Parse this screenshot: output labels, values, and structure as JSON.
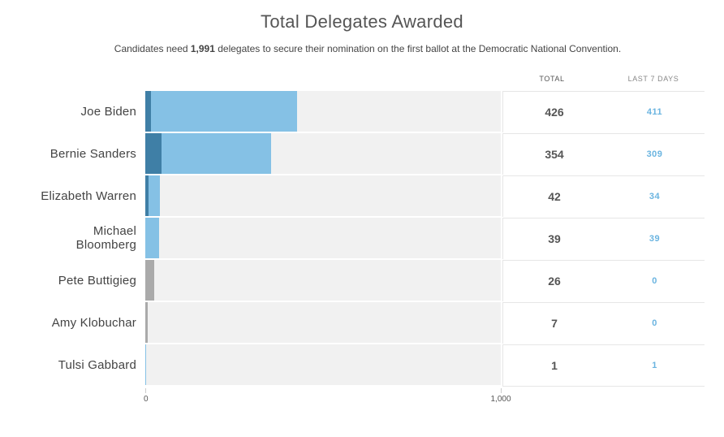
{
  "title": "Total Delegates Awarded",
  "subtitle": {
    "pre": "Candidates need ",
    "bold": "1,991",
    "post": " delegates to secure their nomination on the first ballot at the Democratic National Convention."
  },
  "columns": {
    "total": "TOTAL",
    "last7": "LAST 7 DAYS"
  },
  "colors": {
    "new": "#85c1e5",
    "prior": "#3f7fa6",
    "dropped": "#aaaaaa",
    "track": "#f1f1f1",
    "week_text": "#6ab4e0"
  },
  "chart_data": {
    "type": "bar",
    "orientation": "horizontal",
    "categories": [
      "Joe Biden",
      "Bernie Sanders",
      "Elizabeth Warren",
      "Michael Bloomberg",
      "Pete Buttigieg",
      "Amy Klobuchar",
      "Tulsi Gabbard"
    ],
    "category_labels": [
      "Joe Biden",
      "Bernie Sanders",
      "Elizabeth Warren",
      "Michael\nBloomberg",
      "Pete Buttigieg",
      "Amy Klobuchar",
      "Tulsi Gabbard"
    ],
    "totals": [
      426,
      354,
      42,
      39,
      26,
      7,
      1
    ],
    "last_7_days": [
      411,
      309,
      34,
      39,
      0,
      0,
      1
    ],
    "total_labels": [
      "426",
      "354",
      "42",
      "39",
      "26",
      "7",
      "1"
    ],
    "last_7_days_labels": [
      "411",
      "309",
      "34",
      "39",
      "0",
      "0",
      "1"
    ],
    "dropped_out": [
      false,
      false,
      false,
      false,
      true,
      true,
      false
    ],
    "xlim": [
      0,
      1000
    ],
    "xticks": [
      0,
      1000
    ],
    "xtick_labels": [
      "0",
      "1,000"
    ]
  }
}
